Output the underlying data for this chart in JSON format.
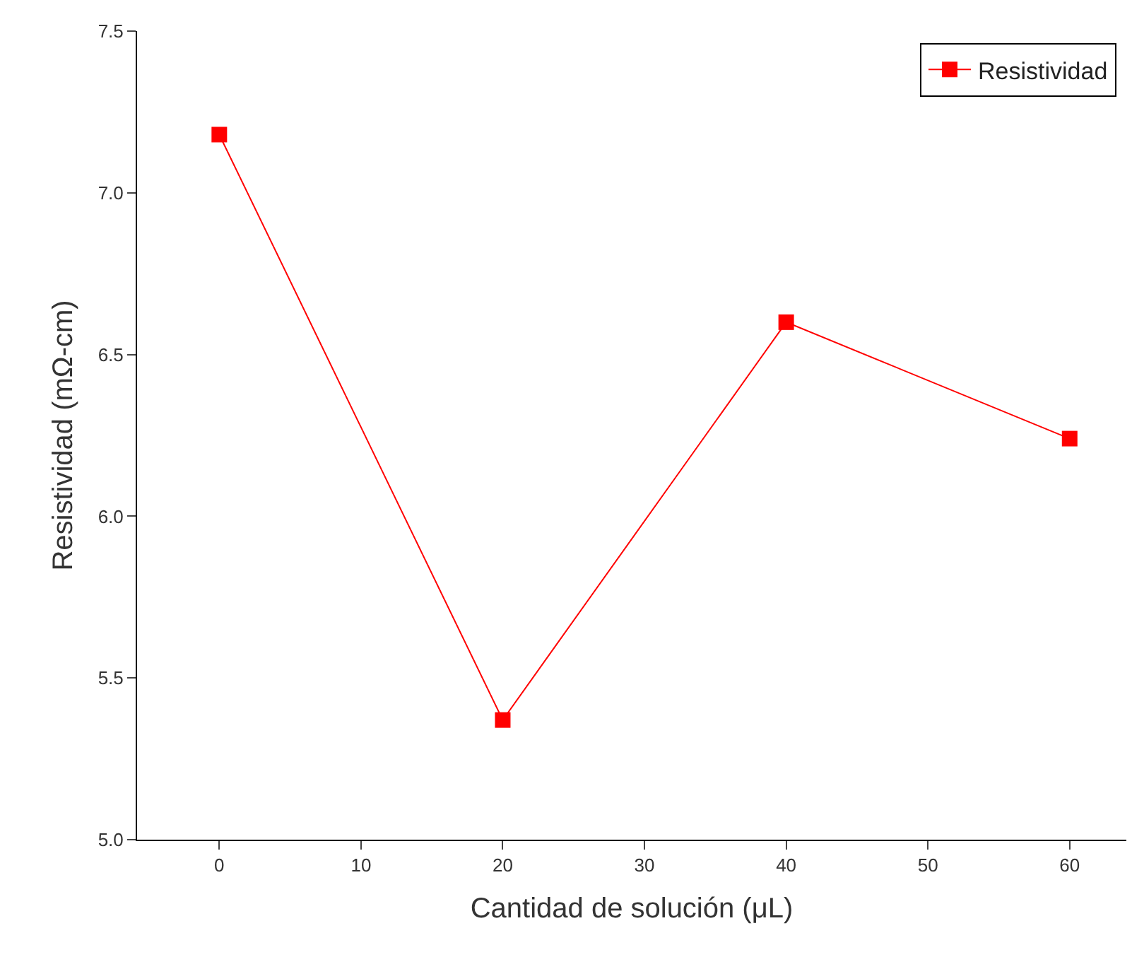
{
  "chart_data": {
    "type": "line",
    "xlabel": "Cantidad de solución (μL)",
    "ylabel": "Resistividad (mΩ-cm)",
    "x": [
      0,
      20,
      40,
      60
    ],
    "series": [
      {
        "name": "Resistividad",
        "color": "#ff0000",
        "values": [
          7.18,
          5.37,
          6.6,
          6.24
        ]
      }
    ],
    "xlim": [
      -5.8,
      64
    ],
    "xticks": [
      0,
      10,
      20,
      30,
      40,
      50,
      60
    ],
    "ylim": [
      5.0,
      7.5
    ],
    "yticks": [
      {
        "value": 5.0,
        "label": "5.0"
      },
      {
        "value": 5.5,
        "label": "5.5"
      },
      {
        "value": 6.0,
        "label": "6.0"
      },
      {
        "value": 6.5,
        "label": "6.5"
      },
      {
        "value": 7.0,
        "label": "7.0"
      },
      {
        "value": 7.5,
        "label": "7.5"
      }
    ],
    "legend": "top right",
    "marker": "square",
    "line_style": "solid"
  }
}
